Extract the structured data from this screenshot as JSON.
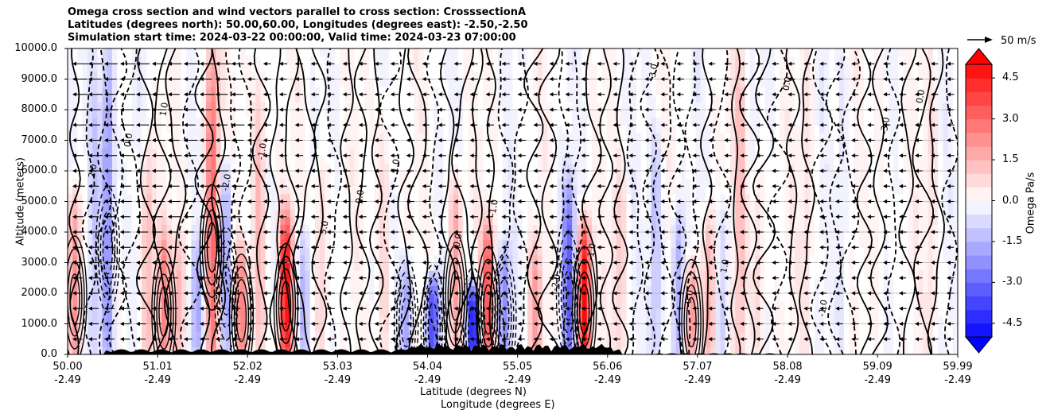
{
  "chart_data": {
    "type": "heatmap",
    "title_lines": [
      "Omega cross section and wind vectors parallel to cross section: CrosssectionA",
      "Latitudes (degrees north): 50.00,60.00, Longitudes (degrees east): -2.50,-2.50",
      "Simulation start time: 2024-03-22 00:00:00, Valid time: 2024-03-23 07:00:00"
    ],
    "ylabel": "Altitude (meters)",
    "xlabel_lines": [
      "Latitude (degrees N)",
      "Longitude (degrees E)"
    ],
    "ylim": [
      0,
      10000
    ],
    "xlim": [
      50.0,
      59.99
    ],
    "y_ticks": [
      "0.0",
      "1000.0",
      "2000.0",
      "3000.0",
      "4000.0",
      "5000.0",
      "6000.0",
      "7000.0",
      "8000.0",
      "9000.0",
      "10000.0"
    ],
    "x_ticks": [
      {
        "lat": "50.00",
        "lon": "-2.49"
      },
      {
        "lat": "51.01",
        "lon": "-2.49"
      },
      {
        "lat": "52.02",
        "lon": "-2.49"
      },
      {
        "lat": "53.03",
        "lon": "-2.49"
      },
      {
        "lat": "54.04",
        "lon": "-2.49"
      },
      {
        "lat": "55.05",
        "lon": "-2.49"
      },
      {
        "lat": "56.06",
        "lon": "-2.49"
      },
      {
        "lat": "57.07",
        "lon": "-2.49"
      },
      {
        "lat": "58.08",
        "lon": "-2.49"
      },
      {
        "lat": "59.09",
        "lon": "-2.49"
      },
      {
        "lat": "59.99",
        "lon": "-2.49"
      }
    ],
    "colorbar": {
      "label": "Omega Pa/s",
      "range": [
        -5.0,
        5.0
      ],
      "ticks": [
        "-4.5",
        "-3.0",
        "-1.5",
        "0.0",
        "1.5",
        "3.0",
        "4.5"
      ],
      "negative_color": "#0000ff",
      "positive_color": "#ff0000",
      "extend": "both"
    },
    "wind_key": {
      "label": "50 m/s"
    },
    "contour_labels": [
      "1.0",
      "1.0",
      "1.0",
      "1.0",
      "-1.0",
      "-1.0",
      "-1.0",
      "-1.0",
      "0.0",
      "0.0",
      "0.0",
      "0.0",
      "0.0",
      "0.0",
      "-2.0",
      "-2.0",
      "-3.0",
      "5.0",
      "3.0",
      "2.0"
    ],
    "omega_features": [
      {
        "lat": 50.08,
        "alt_top": 5200,
        "omega": 2.5
      },
      {
        "lat": 50.3,
        "alt_top": 9500,
        "omega": -1.2
      },
      {
        "lat": 50.45,
        "alt_top": 9800,
        "omega": -2.5
      },
      {
        "lat": 50.9,
        "alt_top": 6500,
        "omega": 1.6
      },
      {
        "lat": 51.08,
        "alt_top": 4000,
        "omega": 2.2
      },
      {
        "lat": 51.25,
        "alt_top": 3800,
        "omega": 1.4
      },
      {
        "lat": 51.45,
        "alt_top": 3500,
        "omega": -1.6
      },
      {
        "lat": 51.62,
        "alt_top": 10000,
        "omega": 3.2
      },
      {
        "lat": 51.78,
        "alt_top": 6000,
        "omega": -2.0
      },
      {
        "lat": 51.95,
        "alt_top": 3500,
        "omega": 2.4
      },
      {
        "lat": 52.15,
        "alt_top": 9000,
        "omega": 1.6
      },
      {
        "lat": 52.45,
        "alt_top": 4500,
        "omega": 4.8
      },
      {
        "lat": 52.65,
        "alt_top": 4000,
        "omega": -1.5
      },
      {
        "lat": 52.85,
        "alt_top": 6000,
        "omega": 1.2
      },
      {
        "lat": 53.55,
        "alt_top": 8000,
        "omega": 1.0
      },
      {
        "lat": 53.8,
        "alt_top": 3000,
        "omega": -2.0
      },
      {
        "lat": 54.1,
        "alt_top": 2500,
        "omega": -4.0
      },
      {
        "lat": 54.35,
        "alt_top": 5500,
        "omega": 2.0
      },
      {
        "lat": 54.55,
        "alt_top": 2200,
        "omega": -5.0
      },
      {
        "lat": 54.72,
        "alt_top": 4200,
        "omega": 3.5
      },
      {
        "lat": 54.9,
        "alt_top": 3500,
        "omega": -2.2
      },
      {
        "lat": 55.25,
        "alt_top": 3600,
        "omega": 1.8
      },
      {
        "lat": 55.62,
        "alt_top": 5500,
        "omega": -3.0
      },
      {
        "lat": 55.8,
        "alt_top": 4200,
        "omega": 5.0
      },
      {
        "lat": 56.2,
        "alt_top": 6000,
        "omega": 1.0
      },
      {
        "lat": 56.6,
        "alt_top": 7000,
        "omega": -1.4
      },
      {
        "lat": 56.85,
        "alt_top": 4500,
        "omega": -1.8
      },
      {
        "lat": 57.0,
        "alt_top": 3000,
        "omega": 2.5
      },
      {
        "lat": 57.2,
        "alt_top": 4500,
        "omega": 1.8
      },
      {
        "lat": 57.35,
        "alt_top": 5000,
        "omega": -1.2
      },
      {
        "lat": 57.55,
        "alt_top": 10000,
        "omega": 1.3
      },
      {
        "lat": 57.75,
        "alt_top": 6000,
        "omega": 1.0
      },
      {
        "lat": 58.3,
        "alt_top": 10000,
        "omega": 0.6
      },
      {
        "lat": 58.7,
        "alt_top": 10000,
        "omega": -0.6
      },
      {
        "lat": 59.1,
        "alt_top": 10000,
        "omega": 0.5
      },
      {
        "lat": 59.7,
        "alt_top": 10000,
        "omega": 0.6
      }
    ]
  }
}
